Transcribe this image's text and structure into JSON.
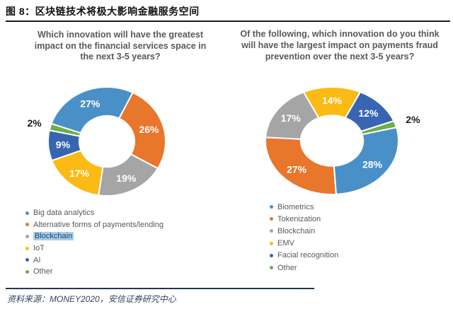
{
  "header": {
    "title": "图 8：区块链技术将极大影响金融服务空间"
  },
  "footer": {
    "source": "资料来源：MONEY2020，安信证券研究中心"
  },
  "palette": {
    "blue": "#4A90C8",
    "orange": "#E8762B",
    "gray": "#A5A5A5",
    "yellow": "#FBBA14",
    "dark_blue": "#3765B2",
    "green": "#6FAD45",
    "label_white": "#FFFFFF",
    "label_black": "#1C1C1C"
  },
  "chart_data": [
    {
      "type": "pie",
      "donut": true,
      "title": "Which innovation will have the greatest impact on the financial services space in the next 3-5 years?",
      "start_angle": -71,
      "legend_position": "bottom-left",
      "segments": [
        {
          "label": "Big data analytics",
          "value": 27,
          "pct": "27%",
          "color": "#4A90C8"
        },
        {
          "label": "Alternative forms of payments/lending",
          "value": 26,
          "pct": "26%",
          "color": "#E8762B"
        },
        {
          "label": "Blockchain",
          "value": 19,
          "pct": "19%",
          "color": "#A5A5A5",
          "legend_highlight": true
        },
        {
          "label": "IoT",
          "value": 17,
          "pct": "17%",
          "color": "#FBBA14"
        },
        {
          "label": "AI",
          "value": 9,
          "pct": "9%",
          "color": "#3765B2"
        },
        {
          "label": "Other",
          "value": 2,
          "pct": "2%",
          "color": "#6FAD45",
          "label_outside": true
        }
      ]
    },
    {
      "type": "pie",
      "donut": true,
      "title": "Of the following, which innovation do you think will have the largest impact on payments fraud prevention over the next 3-5 years?",
      "start_angle": 75.6,
      "legend_position": "bottom-left",
      "segments": [
        {
          "label": "Biometrics",
          "value": 28,
          "pct": "28%",
          "color": "#4A90C8"
        },
        {
          "label": "Tokenization",
          "value": 27,
          "pct": "27%",
          "color": "#E8762B"
        },
        {
          "label": "Blockchain",
          "value": 17,
          "pct": "17%",
          "color": "#A5A5A5"
        },
        {
          "label": "EMV",
          "value": 14,
          "pct": "14%",
          "color": "#FBBA14"
        },
        {
          "label": "Facial recognition",
          "value": 12,
          "pct": "12%",
          "color": "#3765B2"
        },
        {
          "label": "Other",
          "value": 2,
          "pct": "2%",
          "color": "#6FAD45",
          "label_outside": true
        }
      ]
    }
  ]
}
